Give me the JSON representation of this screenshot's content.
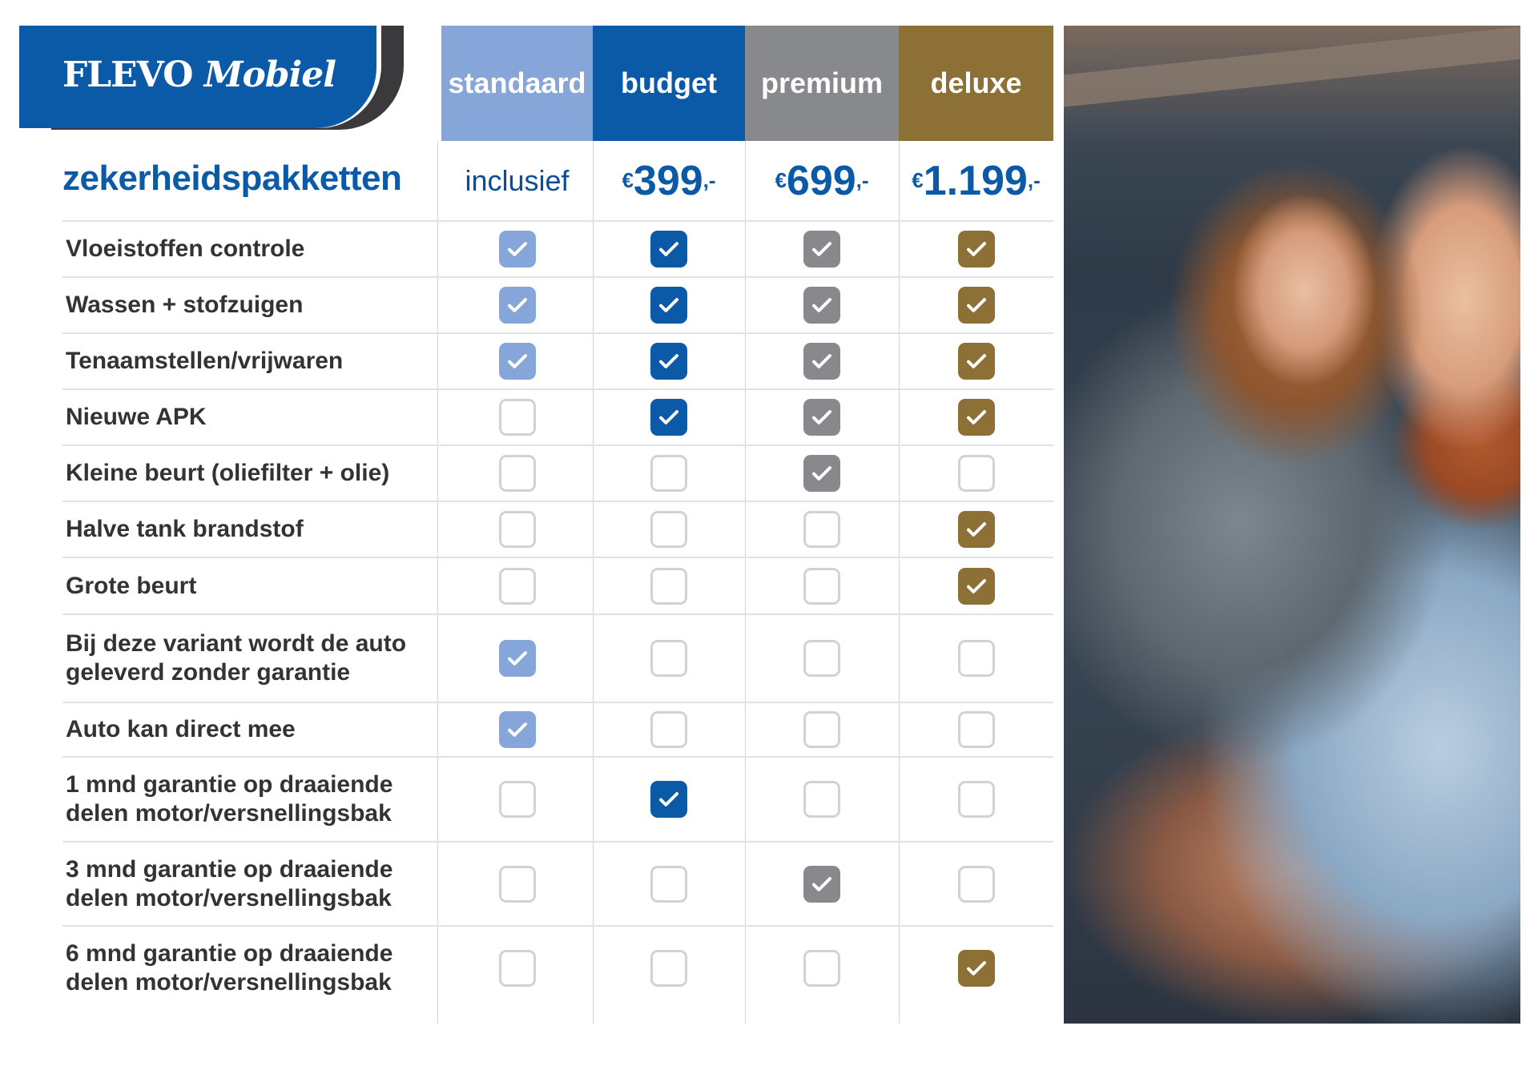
{
  "brand": {
    "name_part1": "FLEVO",
    "name_part2": "Mobiel"
  },
  "title": "zekerheidspakketten",
  "colors": {
    "standaard": "#86a6d9",
    "budget": "#0a5aa8",
    "premium": "#87898c",
    "deluxe": "#8c7036",
    "brand": "#0a5aa8"
  },
  "packages": [
    {
      "name": "standaard",
      "price": "inclusief",
      "color": "#86a6d9"
    },
    {
      "name": "budget",
      "currency": "€",
      "price": "399",
      "suffix": ",-",
      "color": "#0a5aa8"
    },
    {
      "name": "premium",
      "currency": "€",
      "price": "699",
      "suffix": ",-",
      "color": "#87898c"
    },
    {
      "name": "deluxe",
      "currency": "€",
      "price": "1.199",
      "suffix": ",-",
      "color": "#8c7036"
    }
  ],
  "features": [
    {
      "label": "Vloeistoffen controle",
      "checks": [
        true,
        true,
        true,
        true
      ]
    },
    {
      "label": "Wassen + stofzuigen",
      "checks": [
        true,
        true,
        true,
        true
      ]
    },
    {
      "label": "Tenaamstellen/vrijwaren",
      "checks": [
        true,
        true,
        true,
        true
      ]
    },
    {
      "label": "Nieuwe APK",
      "checks": [
        false,
        true,
        true,
        true
      ]
    },
    {
      "label": "Kleine beurt (oliefilter + olie)",
      "checks": [
        false,
        false,
        true,
        false
      ]
    },
    {
      "label": "Halve tank brandstof",
      "checks": [
        false,
        false,
        false,
        true
      ]
    },
    {
      "label": "Grote beurt",
      "checks": [
        false,
        false,
        false,
        true
      ]
    },
    {
      "label": "Bij deze variant wordt de auto geleverd zonder garantie",
      "checks": [
        true,
        false,
        false,
        false
      ]
    },
    {
      "label": "Auto kan direct mee",
      "checks": [
        true,
        false,
        false,
        false
      ]
    },
    {
      "label": "1 mnd garantie op draaiende delen motor/versnellingsbak",
      "checks": [
        false,
        true,
        false,
        false
      ]
    },
    {
      "label": "3 mnd garantie op draaiende delen motor/versnellingsbak",
      "checks": [
        false,
        false,
        true,
        false
      ]
    },
    {
      "label": "6 mnd garantie op draaiende delen motor/versnellingsbak",
      "checks": [
        false,
        false,
        false,
        true
      ]
    }
  ],
  "icons": {
    "checked": "checkmark-icon"
  }
}
